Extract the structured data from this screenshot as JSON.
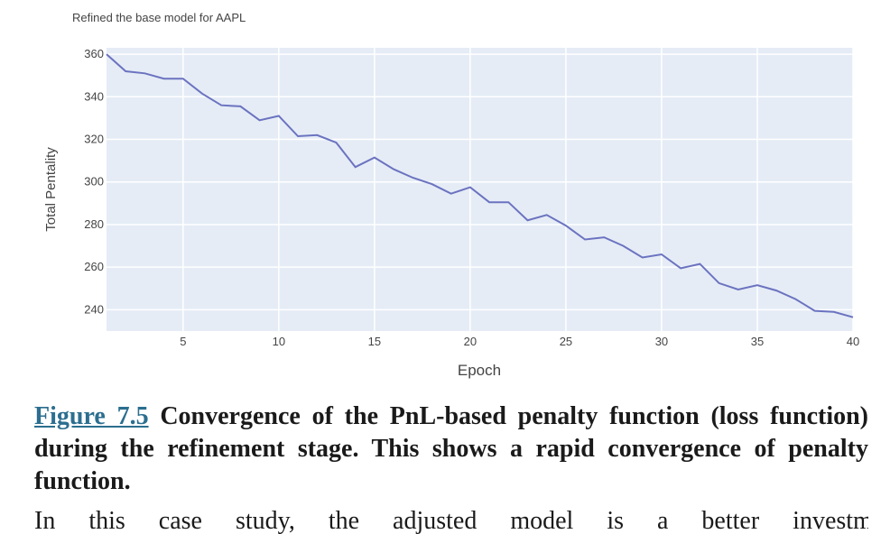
{
  "chart_data": {
    "type": "line",
    "title": "Refined the base model for AAPL",
    "xlabel": "Epoch",
    "ylabel": "Total Pentality",
    "xlim": [
      1,
      40
    ],
    "ylim": [
      230,
      363
    ],
    "x_ticks": [
      5,
      10,
      15,
      20,
      25,
      30,
      35,
      40
    ],
    "y_ticks": [
      240,
      260,
      280,
      300,
      320,
      340,
      360
    ],
    "grid": true,
    "line_color": "#6b73c0",
    "plot_bg": "#e5ecf6",
    "x": [
      1,
      2,
      3,
      4,
      5,
      6,
      7,
      8,
      9,
      10,
      11,
      12,
      13,
      14,
      15,
      16,
      17,
      18,
      19,
      20,
      21,
      22,
      23,
      24,
      25,
      26,
      27,
      28,
      29,
      30,
      31,
      32,
      33,
      34,
      35,
      36,
      37,
      38,
      39,
      40
    ],
    "values": [
      360,
      352,
      351,
      348.5,
      348.5,
      341.5,
      336,
      335.5,
      329,
      331,
      321.5,
      322,
      318.5,
      307,
      311.5,
      306,
      302,
      299,
      294.5,
      297.5,
      290.5,
      290.5,
      282,
      284.5,
      279.5,
      273,
      274,
      270,
      264.5,
      266,
      259.5,
      261.5,
      252.5,
      249.5,
      251.5,
      249,
      245,
      239.5,
      239,
      236.5
    ]
  },
  "caption": {
    "figure_ref": "Figure 7.5",
    "text": " Convergence of the PnL-based penalty function (loss function) during the refinement stage. This shows a rapid convergence of penalty function."
  },
  "next_line_partial": "In this case study, the adjusted model is a better investment"
}
